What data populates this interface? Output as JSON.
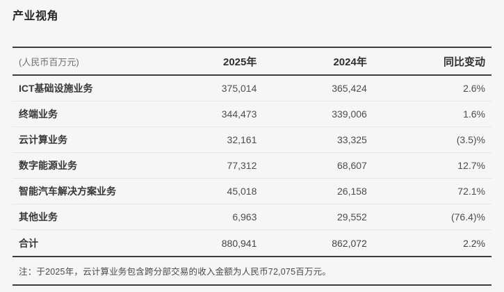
{
  "page": {
    "title": "产业视角"
  },
  "table": {
    "unit_label": "(人民币百万元)",
    "columns": [
      "2025年",
      "2024年",
      "同比变动"
    ],
    "rows": [
      {
        "label": "ICT基础设施业务",
        "y2025": "375,014",
        "y2024": "365,424",
        "change": "2.6%"
      },
      {
        "label": "终端业务",
        "y2025": "344,473",
        "y2024": "339,006",
        "change": "1.6%"
      },
      {
        "label": "云计算业务",
        "y2025": "32,161",
        "y2024": "33,325",
        "change": "(3.5)%"
      },
      {
        "label": "数字能源业务",
        "y2025": "77,312",
        "y2024": "68,607",
        "change": "12.7%"
      },
      {
        "label": "智能汽车解决方案业务",
        "y2025": "45,018",
        "y2024": "26,158",
        "change": "72.1%"
      },
      {
        "label": "其他业务",
        "y2025": "6,963",
        "y2024": "29,552",
        "change": "(76.4)%"
      }
    ],
    "total_row": {
      "label": "合计",
      "y2025": "880,941",
      "y2024": "862,072",
      "change": "2.2%"
    },
    "footnote": "注：于2025年，云计算业务包含跨分部交易的收入金额为人民币72,075百万元。"
  },
  "colors": {
    "background": "#f5f6f5",
    "rule_dark": "#3c3c3c",
    "rule_light": "#e7e7e5",
    "title_text": "#262626",
    "label_text": "#383838",
    "number_text": "#4d4d4d",
    "unit_text": "#6e6e6e"
  }
}
